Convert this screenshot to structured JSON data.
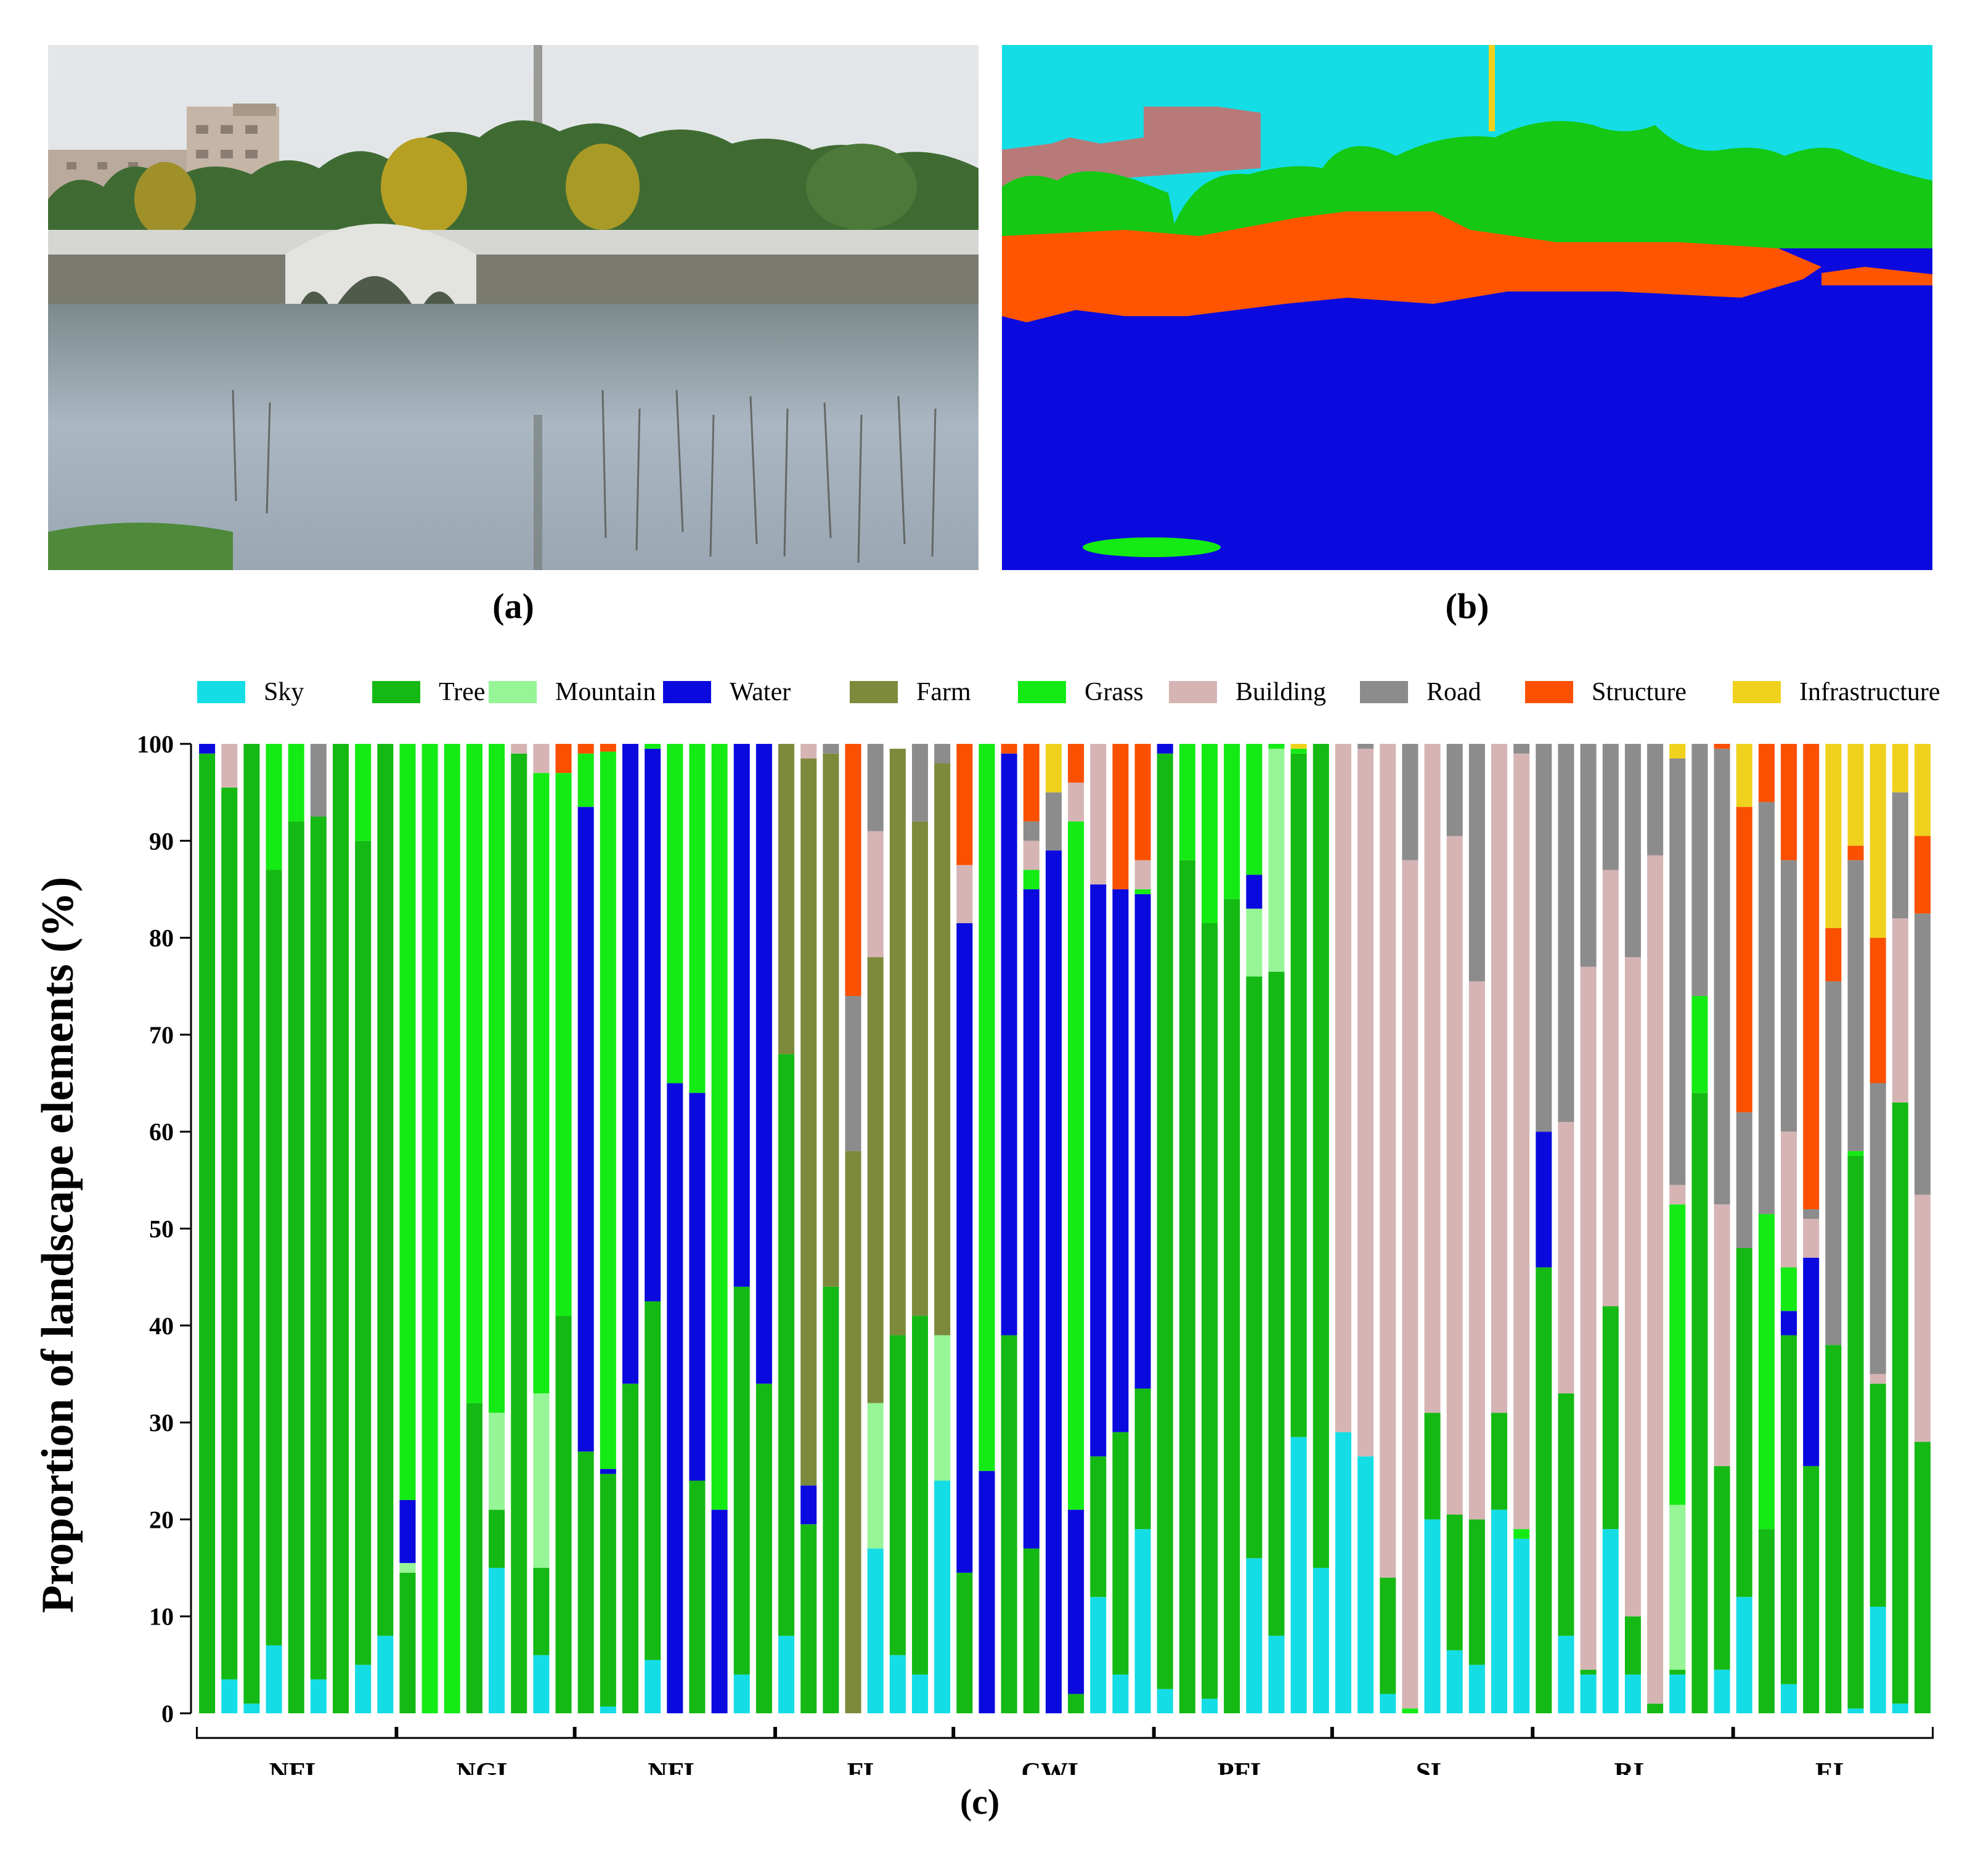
{
  "figure": {
    "panel_labels": {
      "a": "(a)",
      "b": "(b)",
      "c": "(c)"
    }
  },
  "colors": {
    "Sky": "#14dde6",
    "Tree": "#14b914",
    "Mountain": "#96f596",
    "Water": "#0a0ade",
    "Farm": "#7d8a3c",
    "Grass": "#14eb14",
    "Building": "#d6b4b4",
    "Road": "#8c8c8c",
    "Structure": "#fa5000",
    "Infrastructure": "#f0d21e",
    "BuildingSeg": "#b87a78",
    "StructureSeg": "#ff5500"
  },
  "chart_data": {
    "type": "stacked-bar",
    "ylabel": "Proportion of landscape elements (%)",
    "ylim": [
      0,
      100
    ],
    "yticks": [
      0,
      10,
      20,
      30,
      40,
      50,
      60,
      70,
      80,
      90,
      100
    ],
    "legend": [
      "Sky",
      "Tree",
      "Mountain",
      "Water",
      "Farm",
      "Grass",
      "Building",
      "Road",
      "Structure",
      "Infrastructure"
    ],
    "legend_position": "top",
    "groups": [
      {
        "label": "NFL",
        "bars": [
          {
            "Tree": 99,
            "Water": 1
          },
          {
            "Sky": 3.5,
            "Tree": 92,
            "Building": 4.5
          },
          {
            "Sky": 1,
            "Tree": 99
          },
          {
            "Sky": 7,
            "Tree": 80,
            "Grass": 13
          },
          {
            "Tree": 92,
            "Grass": 8
          },
          {
            "Sky": 3.5,
            "Tree": 89,
            "Road": 7.5
          },
          {
            "Tree": 100
          },
          {
            "Sky": 5,
            "Tree": 85,
            "Grass": 10
          },
          {
            "Sky": 8,
            "Tree": 92
          }
        ]
      },
      {
        "label": "NGL",
        "bars": [
          {
            "Tree": 14.5,
            "Mountain": 1,
            "Water": 6.5,
            "Grass": 78
          },
          {
            "Grass": 100
          },
          {
            "Grass": 100
          },
          {
            "Tree": 32,
            "Grass": 68
          },
          {
            "Sky": 15,
            "Tree": 6,
            "Mountain": 10,
            "Grass": 69
          },
          {
            "Tree": 99,
            "Building": 1
          },
          {
            "Sky": 6,
            "Tree": 9,
            "Mountain": 18,
            "Grass": 64,
            "Building": 3
          },
          {
            "Tree": 41,
            "Grass": 56,
            "Structure": 3
          }
        ]
      },
      {
        "label": "NFL",
        "bars": [
          {
            "Tree": 27,
            "Water": 66.5,
            "Grass": 5.5,
            "Structure": 1
          },
          {
            "Sky": 0.7,
            "Tree": 24,
            "Water": 0.5,
            "Grass": 74,
            "Structure": 0.8
          },
          {
            "Tree": 34,
            "Water": 66
          },
          {
            "Sky": 5.5,
            "Tree": 37,
            "Water": 57,
            "Grass": 0.5
          },
          {
            "Tree": 0,
            "Water": 65,
            "Grass": 35
          },
          {
            "Tree": 24,
            "Water": 40,
            "Grass": 36
          },
          {
            "Water": 21,
            "Grass": 79
          },
          {
            "Sky": 4,
            "Tree": 40,
            "Water": 56
          },
          {
            "Tree": 34,
            "Water": 66
          }
        ]
      },
      {
        "label": "FL",
        "bars": [
          {
            "Sky": 8,
            "Tree": 60,
            "Farm": 32
          },
          {
            "Tree": 19.5,
            "Water": 4,
            "Farm": 75,
            "Building": 1.5
          },
          {
            "Tree": 44,
            "Farm": 55,
            "Road": 1
          },
          {
            "Farm": 58,
            "Road": 16,
            "Building": 0,
            "Structure": 26
          },
          {
            "Sky": 17,
            "Mountain": 15,
            "Farm": 46,
            "Building": 13,
            "Road": 9
          },
          {
            "Sky": 6,
            "Tree": 33,
            "Farm": 60.5
          },
          {
            "Sky": 4,
            "Tree": 37,
            "Farm": 51,
            "Road": 8
          },
          {
            "Sky": 24,
            "Mountain": 15,
            "Farm": 59,
            "Road": 2
          }
        ]
      },
      {
        "label": "CWL",
        "bars": [
          {
            "Tree": 14.5,
            "Water": 67,
            "Building": 6,
            "Structure": 12.5
          },
          {
            "Water": 25,
            "Grass": 75
          },
          {
            "Tree": 39,
            "Water": 60,
            "Structure": 1
          },
          {
            "Tree": 17,
            "Water": 68,
            "Grass": 2,
            "Building": 3,
            "Road": 2,
            "Structure": 8
          },
          {
            "Water": 89,
            "Road": 6,
            "Infrastructure": 5
          },
          {
            "Tree": 2,
            "Water": 19,
            "Grass": 71,
            "Building": 4,
            "Structure": 4
          },
          {
            "Sky": 12,
            "Tree": 14.5,
            "Water": 59,
            "Building": 14.5
          },
          {
            "Sky": 4,
            "Tree": 25,
            "Water": 56,
            "Structure": 15
          },
          {
            "Sky": 19,
            "Tree": 14.5,
            "Water": 51,
            "Grass": 0.5,
            "Building": 3,
            "Structure": 12
          }
        ]
      },
      {
        "label": "PFL",
        "bars": [
          {
            "Sky": 2.5,
            "Tree": 96.5,
            "Water": 1
          },
          {
            "Tree": 88,
            "Grass": 12
          },
          {
            "Sky": 1.5,
            "Tree": 80,
            "Grass": 18.5
          },
          {
            "Tree": 84,
            "Grass": 16
          },
          {
            "Sky": 16,
            "Tree": 60,
            "Mountain": 7,
            "Water": 3.5,
            "Grass": 13.5
          },
          {
            "Sky": 8,
            "Tree": 68.5,
            "Mountain": 23,
            "Grass": 0.5
          },
          {
            "Sky": 28.5,
            "Tree": 70.5,
            "Grass": 0.5,
            "Infrastructure": 0.5
          },
          {
            "Sky": 15,
            "Tree": 85
          }
        ]
      },
      {
        "label": "SL",
        "bars": [
          {
            "Sky": 29,
            "Building": 71
          },
          {
            "Sky": 26.5,
            "Building": 73,
            "Road": 0.5
          },
          {
            "Sky": 2,
            "Tree": 12,
            "Building": 86
          },
          {
            "Grass": 0.5,
            "Building": 87.5,
            "Road": 12
          },
          {
            "Sky": 20,
            "Tree": 11,
            "Building": 69
          },
          {
            "Sky": 6.5,
            "Tree": 14,
            "Building": 70,
            "Road": 9.5
          },
          {
            "Sky": 5,
            "Tree": 15,
            "Building": 55.5,
            "Road": 24.5
          },
          {
            "Sky": 21,
            "Tree": 10,
            "Building": 69
          },
          {
            "Sky": 18,
            "Grass": 1,
            "Building": 80,
            "Road": 1
          }
        ]
      },
      {
        "label": "RL",
        "bars": [
          {
            "Tree": 46,
            "Water": 14,
            "Road": 40
          },
          {
            "Sky": 8,
            "Tree": 25,
            "Building": 28,
            "Road": 39
          },
          {
            "Sky": 4,
            "Tree": 0.5,
            "Building": 72.5,
            "Road": 23
          },
          {
            "Sky": 19,
            "Tree": 23,
            "Building": 45,
            "Road": 13
          },
          {
            "Sky": 4,
            "Tree": 6,
            "Building": 68,
            "Road": 22
          },
          {
            "Tree": 1,
            "Building": 87.5,
            "Road": 11.5
          },
          {
            "Sky": 4,
            "Tree": 0.5,
            "Mountain": 17,
            "Grass": 31,
            "Building": 2,
            "Road": 44,
            "Infrastructure": 1.5
          },
          {
            "Tree": 64,
            "Grass": 10,
            "Road": 26
          },
          {
            "Sky": 4.5,
            "Tree": 21,
            "Building": 27,
            "Road": 47,
            "Structure": 0.5
          }
        ]
      },
      {
        "label": "EL",
        "bars": [
          {
            "Sky": 12,
            "Tree": 36,
            "Road": 14,
            "Structure": 31.5,
            "Infrastructure": 6.5
          },
          {
            "Tree": 19,
            "Grass": 32.5,
            "Road": 42.5,
            "Structure": 6
          },
          {
            "Sky": 3,
            "Tree": 36,
            "Water": 2.5,
            "Grass": 4.5,
            "Building": 14,
            "Road": 28,
            "Structure": 12
          },
          {
            "Tree": 25.5,
            "Water": 21.5,
            "Building": 4,
            "Road": 1,
            "Structure": 48
          },
          {
            "Tree": 38,
            "Road": 37.5,
            "Structure": 5.5,
            "Infrastructure": 19
          },
          {
            "Sky": 0.5,
            "Tree": 57,
            "Grass": 0.5,
            "Road": 30,
            "Structure": 1.5,
            "Infrastructure": 10.5
          },
          {
            "Sky": 11,
            "Tree": 23,
            "Building": 1,
            "Road": 30,
            "Structure": 15,
            "Infrastructure": 20
          },
          {
            "Sky": 1,
            "Tree": 62,
            "Building": 19,
            "Road": 13,
            "Infrastructure": 5
          },
          {
            "Tree": 28,
            "Building": 25.5,
            "Road": 29,
            "Structure": 8,
            "Infrastructure": 9.5
          }
        ]
      }
    ]
  }
}
